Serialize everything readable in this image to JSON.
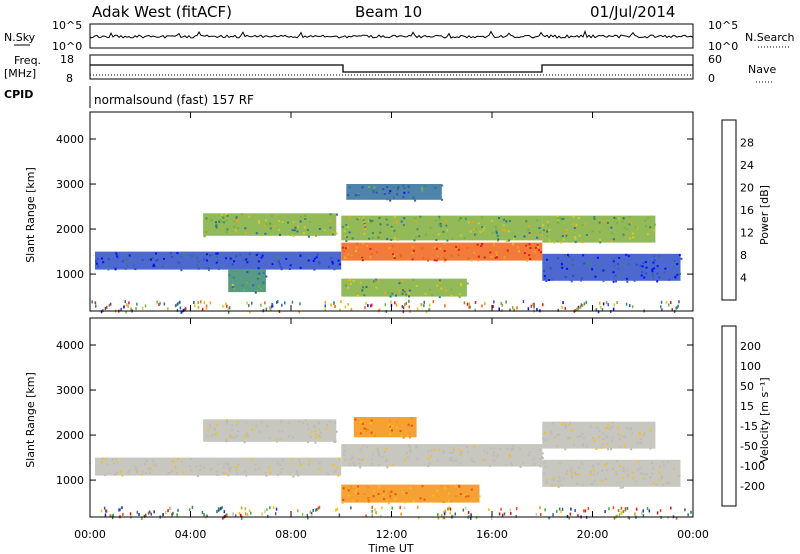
{
  "header": {
    "radar": "Adak West (fitACF)",
    "beam": "Beam 10",
    "date": "01/Jul/2014"
  },
  "status_panel": {
    "nsky_label": "N.Sky",
    "nsky_ticks": [
      "10^5",
      "10^0"
    ],
    "nsearch_label": "N.Search",
    "nsearch_ticks": [
      "10^5",
      "10^0"
    ],
    "freq_label": "Freq.",
    "freq_unit": "[MHz]",
    "freq_ticks": [
      "18",
      "8"
    ],
    "nave_label": "Nave",
    "nave_ticks": [
      "60",
      "0"
    ],
    "cpid_label": "CPID",
    "cpid_text": "normalsound (fast) 157 RF"
  },
  "colors": {
    "power": [
      "#0010ff",
      "#2e4fc8",
      "#2f6d9b",
      "#3a8a6e",
      "#7fae3c",
      "#d7c820",
      "#f5a21a",
      "#f0641a",
      "#e61a1a"
    ],
    "velocity": [
      "#1a2dc8",
      "#2e5fa0",
      "#2f8060",
      "#3fa83f",
      "#7fd04a",
      "#c8c8c0",
      "#f5c020",
      "#f59010",
      "#f05010",
      "#e01010"
    ],
    "ground": "#bdbdb5"
  },
  "chart_data": [
    {
      "type": "heatmap",
      "name": "power",
      "title": "",
      "ylabel": "Slant Range [km]",
      "xlabel": "",
      "x_ticks": [
        "00:00",
        "04:00",
        "08:00",
        "12:00",
        "16:00",
        "20:00",
        "00:00"
      ],
      "x_range_hours": [
        0,
        24
      ],
      "y_ticks": [
        "1000",
        "2000",
        "3000",
        "4000"
      ],
      "ylim": [
        180,
        4600
      ],
      "colorbar_label": "Power [dB]",
      "colorbar_ticks": [
        "28",
        "24",
        "20",
        "16",
        "12",
        "8",
        "4"
      ],
      "colorbar_range": [
        0,
        32
      ],
      "features": [
        {
          "t": [
            0.2,
            10.0
          ],
          "range": [
            1100,
            1500
          ],
          "level": 1
        },
        {
          "t": [
            4.5,
            9.8
          ],
          "range": [
            1850,
            2350
          ],
          "level": 4
        },
        {
          "t": [
            5.5,
            7.0
          ],
          "range": [
            600,
            1100
          ],
          "level": 3
        },
        {
          "t": [
            10.0,
            18.0
          ],
          "range": [
            1300,
            1700
          ],
          "level": 7
        },
        {
          "t": [
            10.0,
            18.0
          ],
          "range": [
            1750,
            2300
          ],
          "level": 4
        },
        {
          "t": [
            10.2,
            14.0
          ],
          "range": [
            2650,
            3000
          ],
          "level": 2
        },
        {
          "t": [
            10.0,
            15.0
          ],
          "range": [
            500,
            900
          ],
          "level": 4
        },
        {
          "t": [
            18.0,
            22.5
          ],
          "range": [
            1700,
            2300
          ],
          "level": 4
        },
        {
          "t": [
            18.0,
            23.5
          ],
          "range": [
            850,
            1450
          ],
          "level": 1
        }
      ]
    },
    {
      "type": "heatmap",
      "name": "velocity",
      "title": "",
      "ylabel": "Slant Range [km]",
      "xlabel": "Time UT",
      "x_ticks": [
        "00:00",
        "04:00",
        "08:00",
        "12:00",
        "16:00",
        "20:00",
        "00:00"
      ],
      "x_range_hours": [
        0,
        24
      ],
      "y_ticks": [
        "1000",
        "2000",
        "3000",
        "4000"
      ],
      "ylim": [
        180,
        4600
      ],
      "colorbar_label": "Velocity [m s⁻¹]",
      "colorbar_ticks": [
        "200",
        "100",
        "50",
        "15",
        "-15",
        "-50",
        "-100",
        "-200"
      ],
      "colorbar_range": [
        -250,
        250
      ],
      "features": [
        {
          "t": [
            0.2,
            10.0
          ],
          "range": [
            1100,
            1500
          ],
          "value": 0
        },
        {
          "t": [
            4.5,
            9.8
          ],
          "range": [
            1850,
            2350
          ],
          "value": 0
        },
        {
          "t": [
            10.0,
            18.0
          ],
          "range": [
            1300,
            1800
          ],
          "value": 0
        },
        {
          "t": [
            10.5,
            13.0
          ],
          "range": [
            1950,
            2400
          ],
          "value": -60
        },
        {
          "t": [
            10.0,
            15.5
          ],
          "range": [
            500,
            900
          ],
          "value": -60
        },
        {
          "t": [
            18.0,
            22.5
          ],
          "range": [
            1700,
            2300
          ],
          "value": 0
        },
        {
          "t": [
            18.0,
            23.5
          ],
          "range": [
            850,
            1450
          ],
          "value": 0
        }
      ]
    }
  ]
}
